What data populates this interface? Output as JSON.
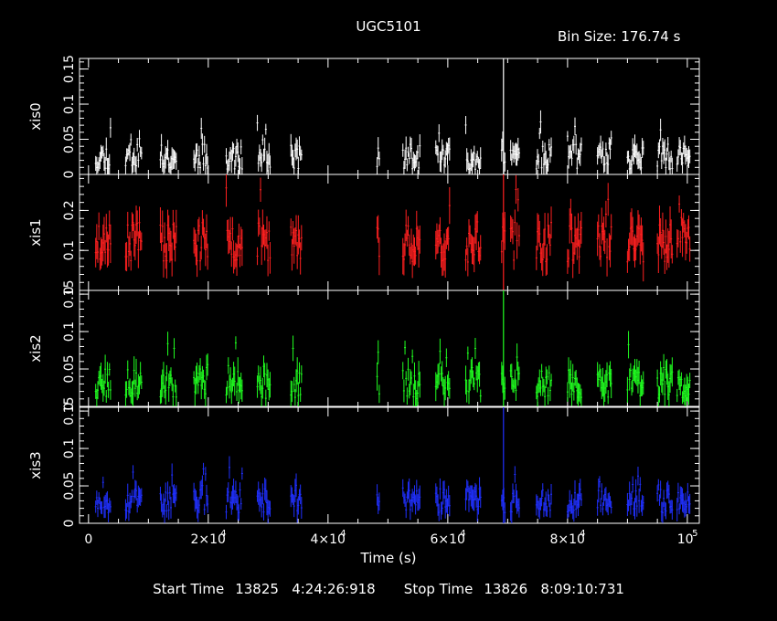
{
  "chart_data": {
    "type": "scatter",
    "title": "UGC5101",
    "bin_size_label": "Bin Size:  176.74  s",
    "xlabel": "Time (s)",
    "xlim": [
      -1500,
      102000
    ],
    "x_ticks": [
      {
        "value": 0,
        "base": "0",
        "exp": ""
      },
      {
        "value": 20000,
        "base": "2×10",
        "exp": "4"
      },
      {
        "value": 40000,
        "base": "4×10",
        "exp": "4"
      },
      {
        "value": 60000,
        "base": "6×10",
        "exp": "4"
      },
      {
        "value": 80000,
        "base": "8×10",
        "exp": "4"
      },
      {
        "value": 100000,
        "base": "10",
        "exp": "5"
      }
    ],
    "segments": [
      [
        1200,
        3800
      ],
      [
        6200,
        9000
      ],
      [
        12000,
        14800
      ],
      [
        17600,
        20000
      ],
      [
        23000,
        25800
      ],
      [
        28200,
        30400
      ],
      [
        33800,
        35600
      ],
      [
        48200,
        48700
      ],
      [
        52500,
        55400
      ],
      [
        58000,
        60300
      ],
      [
        63000,
        65500
      ],
      [
        69000,
        69600
      ],
      [
        70500,
        72000
      ],
      [
        74800,
        77400
      ],
      [
        80000,
        82300
      ],
      [
        85000,
        87400
      ],
      [
        90000,
        92800
      ],
      [
        95000,
        97500
      ],
      [
        98300,
        100500
      ]
    ],
    "flare_x": 69300,
    "panels": [
      {
        "name": "xis0",
        "color": "#ffffff",
        "ylim": [
          0,
          0.165
        ],
        "yticks": [
          {
            "value": 0,
            "label": "0"
          },
          {
            "value": 0.05,
            "label": "0.05"
          },
          {
            "value": 0.1,
            "label": "0.1"
          },
          {
            "value": 0.15,
            "label": "0.15"
          }
        ],
        "mean": 0.025,
        "spread": 0.018,
        "err": 0.012,
        "seed": 11,
        "flare": 0.165
      },
      {
        "name": "xis1",
        "color": "#ff2020",
        "ylim": [
          0,
          0.29
        ],
        "yticks": [
          {
            "value": 0,
            "label": "0"
          },
          {
            "value": 0.1,
            "label": "0.1"
          },
          {
            "value": 0.2,
            "label": "0.2"
          }
        ],
        "mean": 0.12,
        "spread": 0.05,
        "err": 0.035,
        "seed": 23,
        "flare": 0.29
      },
      {
        "name": "xis2",
        "color": "#20ff20",
        "ylim": [
          0,
          0.155
        ],
        "yticks": [
          {
            "value": 0,
            "label": "0"
          },
          {
            "value": 0.05,
            "label": "0.05"
          },
          {
            "value": 0.1,
            "label": "0.1"
          },
          {
            "value": 0.15,
            "label": "0.15"
          }
        ],
        "mean": 0.03,
        "spread": 0.02,
        "err": 0.014,
        "seed": 37,
        "flare": 0.155
      },
      {
        "name": "xis3",
        "color": "#2030ff",
        "ylim": [
          0,
          0.155
        ],
        "yticks": [
          {
            "value": 0,
            "label": "0"
          },
          {
            "value": 0.05,
            "label": "0.05"
          },
          {
            "value": 0.1,
            "label": "0.1"
          },
          {
            "value": 0.15,
            "label": "0.15"
          }
        ],
        "mean": 0.03,
        "spread": 0.016,
        "err": 0.012,
        "seed": 53,
        "flare": 0.155
      }
    ]
  },
  "footer": {
    "start_label": "Start Time",
    "start_value": "13825   4:24:26:918",
    "stop_label": "Stop Time",
    "stop_value": "13826   8:09:10:731"
  }
}
